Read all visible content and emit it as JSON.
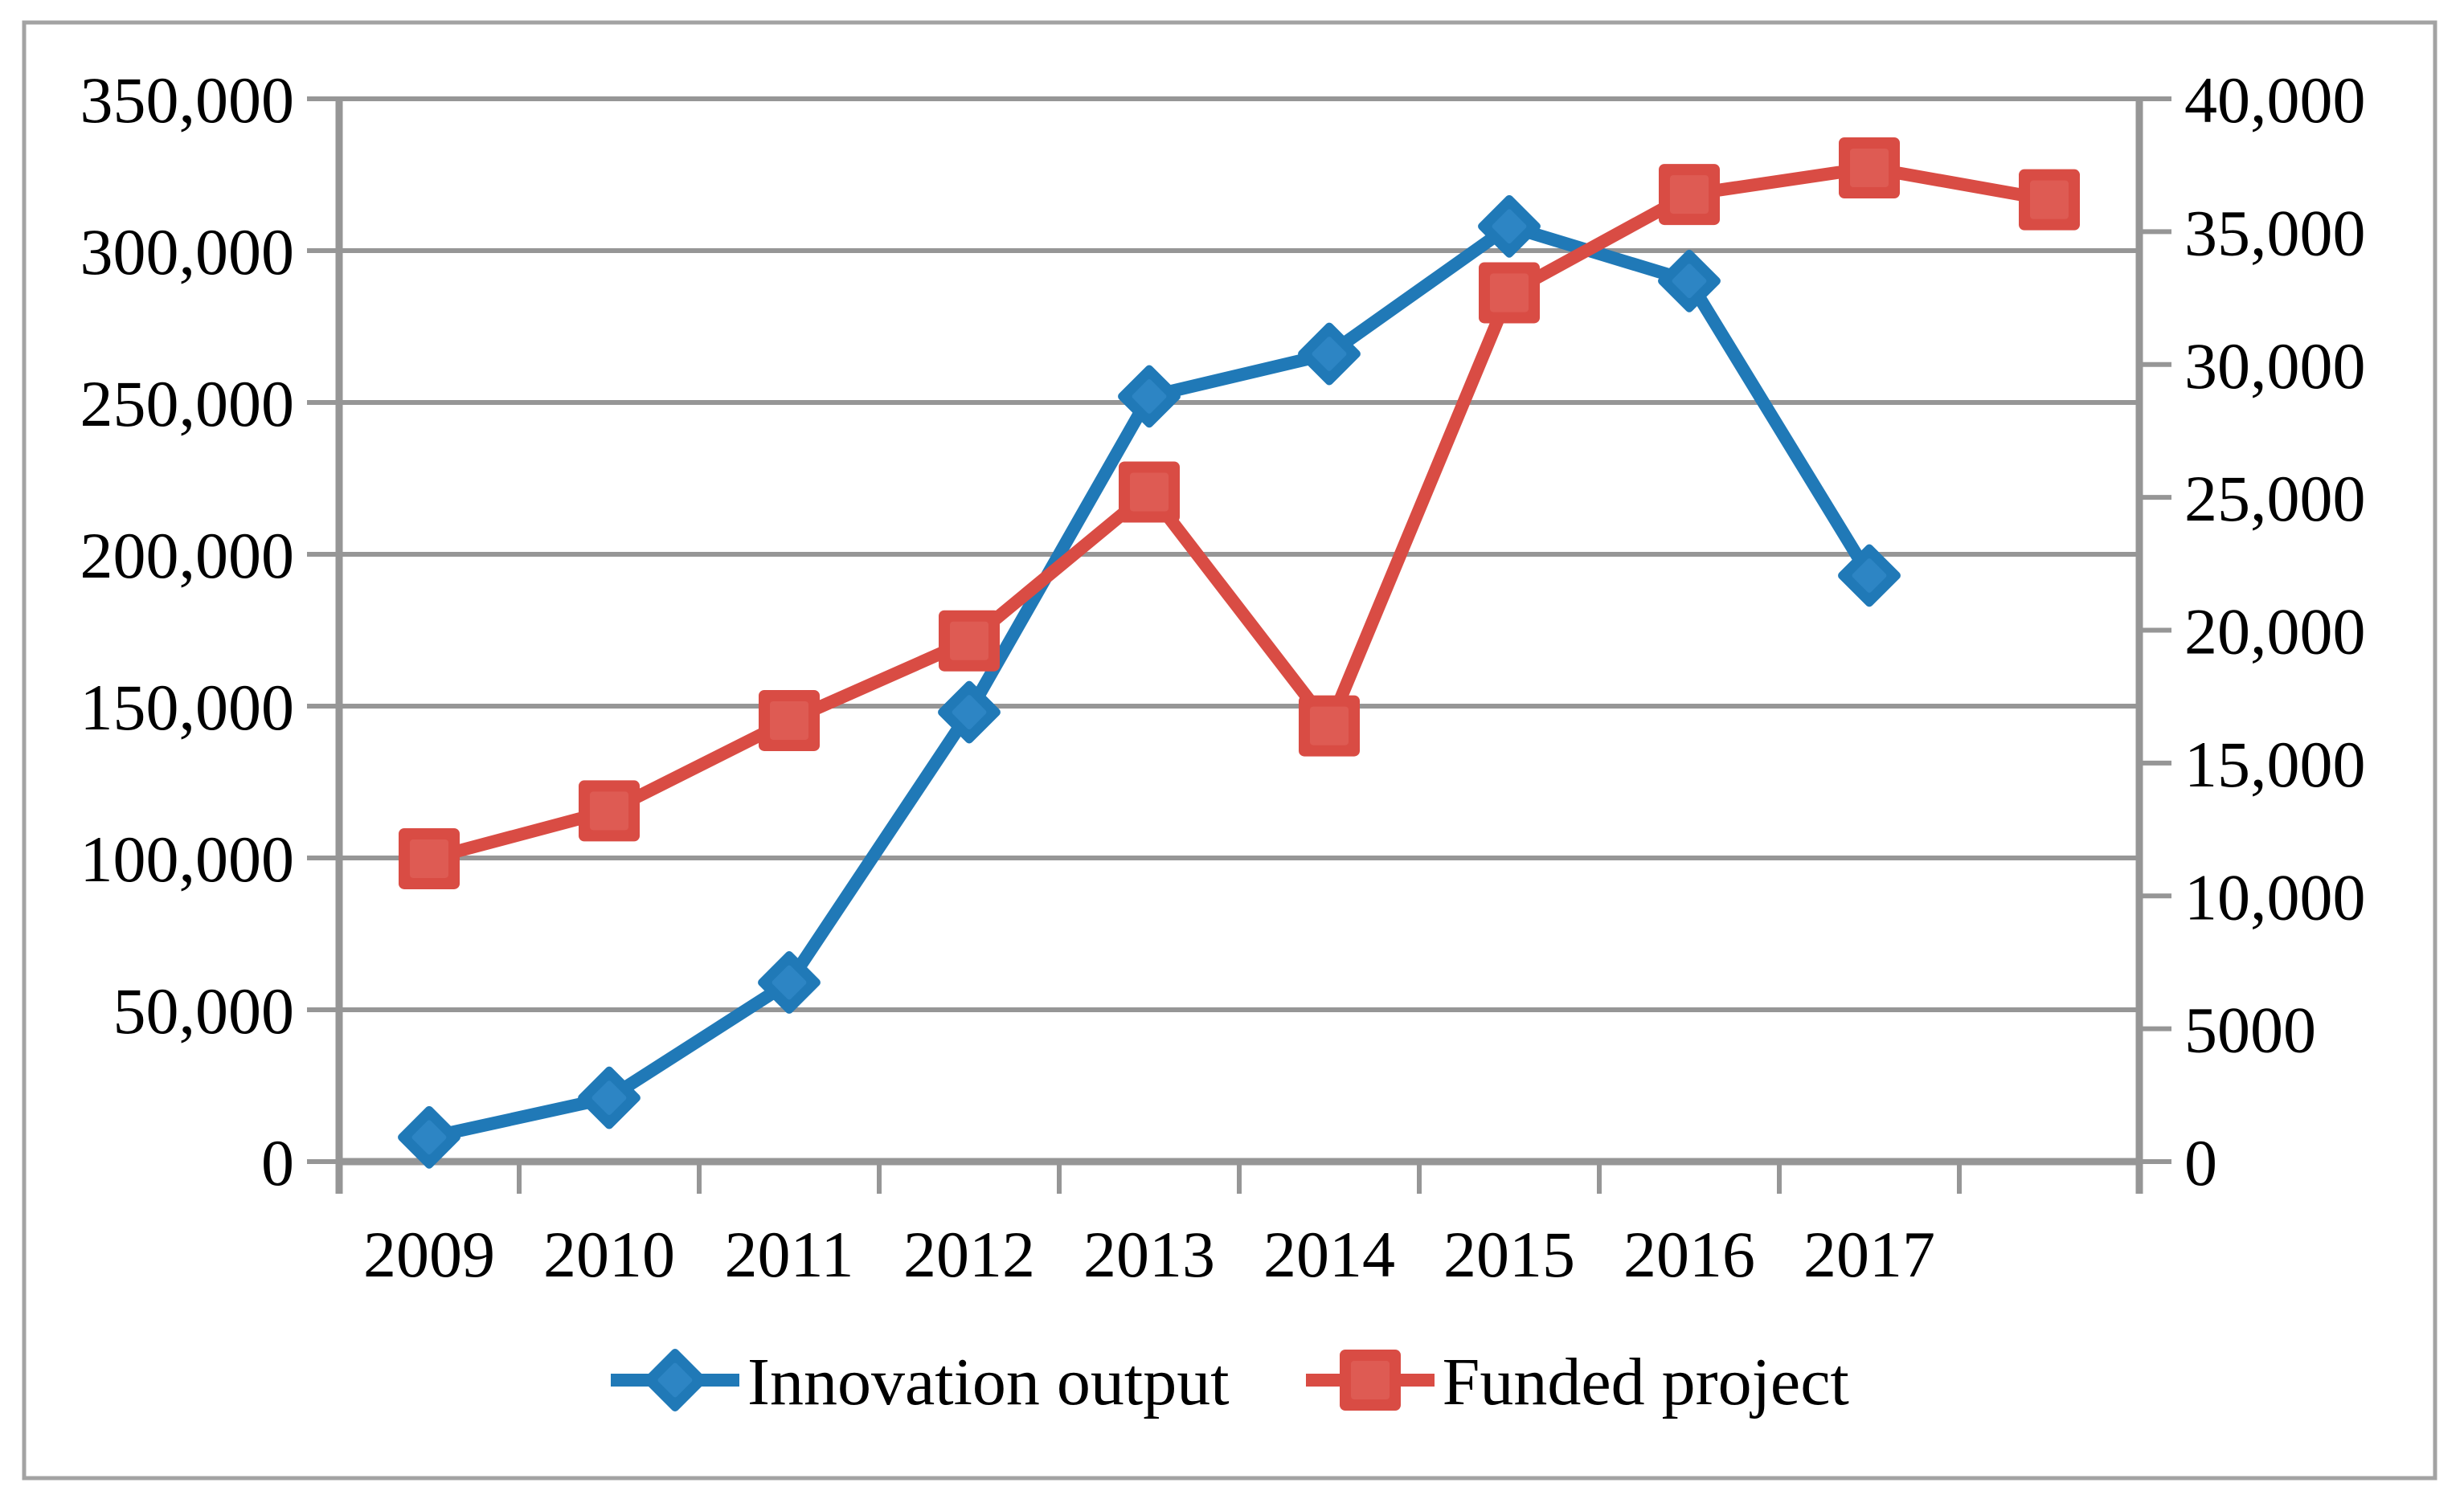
{
  "figure": {
    "background_color": "#FFFFFF",
    "border_color": "#A3A3A3",
    "gridline_color": "#969696",
    "axis_color": "#969696",
    "text_color": "#000000"
  },
  "chart_data": {
    "type": "line",
    "title": "",
    "xlabel": "",
    "ylabel_left": "",
    "ylabel_right": "",
    "grid": true,
    "legend_position": "bottom",
    "categories": [
      "2009",
      "2010",
      "2011",
      "2012",
      "2013",
      "2014",
      "2015",
      "2016",
      "2017",
      ""
    ],
    "series": [
      {
        "name": "Innovation output",
        "axis": "left",
        "marker": "diamond",
        "color": "#2079B7",
        "marker_inner_color": "#2D85C4",
        "values": [
          8000,
          21000,
          59000,
          148000,
          252000,
          266000,
          308000,
          290000,
          193000
        ]
      },
      {
        "name": "Funded project",
        "axis": "right",
        "marker": "square",
        "color": "#D94C44",
        "marker_inner_color": "#DE5B53",
        "values": [
          11400,
          13200,
          16600,
          19600,
          25200,
          16400,
          32700,
          36400,
          37400,
          36200
        ]
      }
    ],
    "y_left": {
      "min": 0,
      "max": 350000,
      "tick_step": 50000,
      "tick_labels": [
        "350,000",
        "300,000",
        "250,000",
        "200,000",
        "150,000",
        "100,000",
        "50,000",
        "0"
      ]
    },
    "y_right": {
      "min": 0,
      "max": 40000,
      "tick_step": 5000,
      "tick_labels": [
        "40,000",
        "35,000",
        "30,000",
        "25,000",
        "20,000",
        "15,000",
        "10,000",
        "5000",
        "0"
      ]
    }
  }
}
